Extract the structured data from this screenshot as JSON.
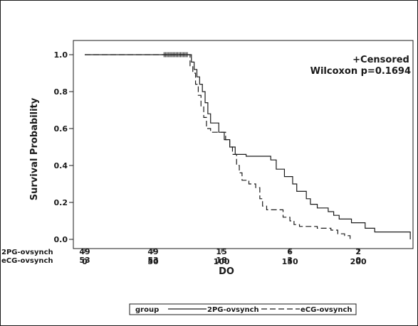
{
  "chart_data": {
    "type": "line",
    "xlabel": "DO",
    "ylabel": "Survival Probability",
    "xlim": [
      0,
      240
    ],
    "ylim": [
      0,
      1.0
    ],
    "x_ticks": [
      0,
      50,
      100,
      150,
      200
    ],
    "y_ticks": [
      0.0,
      0.2,
      0.4,
      0.6,
      0.8,
      1.0
    ],
    "y_tick_labels": [
      "0.0",
      "0.2",
      "0.4",
      "0.6",
      "0.8",
      "1.0"
    ],
    "annotations": [
      "+Censored",
      "Wilcoxon p=0.1694"
    ],
    "legend": {
      "title": "group",
      "position": "bottom",
      "entries": [
        "2PG-ovsynch",
        "eCG-ovsynch"
      ]
    },
    "censored_marks": {
      "symbol": "+",
      "x": [
        58,
        59,
        60,
        61,
        62,
        63,
        64,
        65,
        66,
        67,
        68,
        69,
        70,
        71,
        72,
        73,
        74,
        75
      ],
      "y": 1.0
    },
    "series": [
      {
        "name": "2PG-ovsynch",
        "style": "solid",
        "color": "#1a1a1a",
        "steps": [
          [
            0,
            1.0
          ],
          [
            78,
            0.96
          ],
          [
            80,
            0.92
          ],
          [
            82,
            0.88
          ],
          [
            84,
            0.84
          ],
          [
            86,
            0.8
          ],
          [
            88,
            0.74
          ],
          [
            90,
            0.68
          ],
          [
            92,
            0.63
          ],
          [
            98,
            0.58
          ],
          [
            102,
            0.54
          ],
          [
            106,
            0.5
          ],
          [
            110,
            0.46
          ],
          [
            118,
            0.45
          ],
          [
            136,
            0.43
          ],
          [
            140,
            0.38
          ],
          [
            146,
            0.34
          ],
          [
            152,
            0.3
          ],
          [
            155,
            0.26
          ],
          [
            162,
            0.22
          ],
          [
            165,
            0.19
          ],
          [
            170,
            0.17
          ],
          [
            178,
            0.15
          ],
          [
            182,
            0.13
          ],
          [
            186,
            0.11
          ],
          [
            195,
            0.09
          ],
          [
            205,
            0.06
          ],
          [
            212,
            0.04
          ],
          [
            232,
            0.04
          ],
          [
            238,
            0.0
          ]
        ]
      },
      {
        "name": "eCG-ovsynch",
        "style": "dashed",
        "color": "#1a1a1a",
        "steps": [
          [
            0,
            1.0
          ],
          [
            77,
            0.94
          ],
          [
            79,
            0.9
          ],
          [
            81,
            0.84
          ],
          [
            83,
            0.78
          ],
          [
            85,
            0.72
          ],
          [
            87,
            0.66
          ],
          [
            89,
            0.6
          ],
          [
            92,
            0.58
          ],
          [
            103,
            0.54
          ],
          [
            106,
            0.5
          ],
          [
            108,
            0.46
          ],
          [
            111,
            0.4
          ],
          [
            113,
            0.36
          ],
          [
            115,
            0.32
          ],
          [
            120,
            0.3
          ],
          [
            125,
            0.28
          ],
          [
            128,
            0.22
          ],
          [
            130,
            0.18
          ],
          [
            133,
            0.16
          ],
          [
            145,
            0.12
          ],
          [
            150,
            0.1
          ],
          [
            153,
            0.08
          ],
          [
            157,
            0.07
          ],
          [
            170,
            0.06
          ],
          [
            180,
            0.05
          ],
          [
            185,
            0.03
          ],
          [
            190,
            0.02
          ],
          [
            194,
            0.0
          ]
        ]
      }
    ],
    "risk_table": {
      "times": [
        0,
        50,
        100,
        150,
        200
      ],
      "rows": [
        {
          "label": "2PG-ovsynch",
          "values": [
            "49",
            "49",
            "15",
            "6",
            "2"
          ]
        },
        {
          "label": "eCG-ovsynch",
          "values": [
            "53",
            "53",
            "18",
            "3",
            "0"
          ]
        }
      ]
    }
  }
}
